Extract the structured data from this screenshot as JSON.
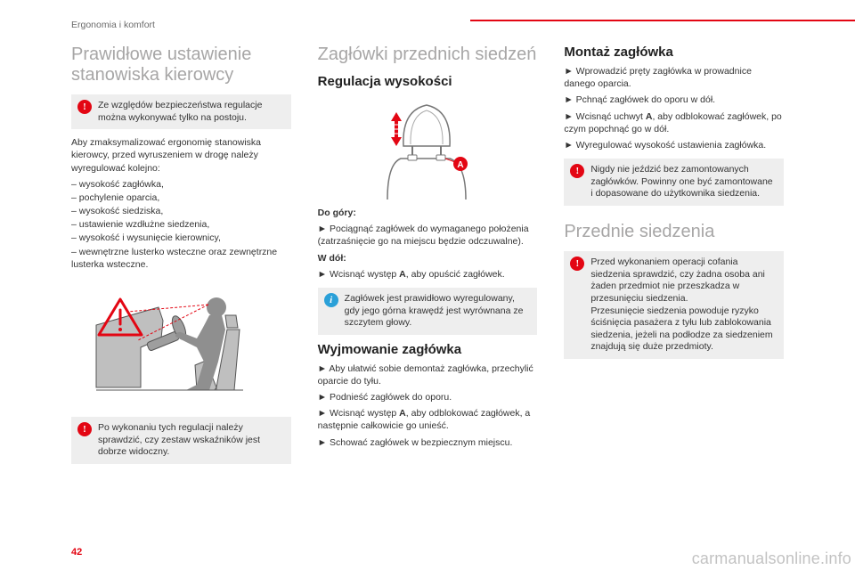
{
  "colors": {
    "accent": "#e30613",
    "heading_gray": "#a7a6a6",
    "text": "#333333",
    "callout_bg": "#eeeeee",
    "info_blue": "#2aa0d8",
    "figure_gray": "#bfbfbf",
    "figure_stroke": "#555555"
  },
  "breadcrumb": "Ergonomia i komfort",
  "page_number": "42",
  "watermark": "carmanualsonline.info",
  "col1": {
    "title": "Prawidłowe ustawienie stanowiska kierowcy",
    "warn1": "Ze względów bezpieczeństwa regulacje można wykonywać tylko na postoju.",
    "intro": "Aby zmaksymalizować ergonomię stanowiska kierowcy, przed wyruszeniem w drogę należy wyregulować kolejno:",
    "items": [
      "wysokość zagłówka,",
      "pochylenie oparcia,",
      "wysokość siedziska,",
      "ustawienie wzdłużne siedzenia,",
      "wysokość i wysunięcie kierownicy,",
      "wewnętrzne lusterko wsteczne oraz zewnętrzne lusterka wsteczne."
    ],
    "warn2": "Po wykonaniu tych regulacji należy sprawdzić, czy zestaw wskaźników jest dobrze widoczny."
  },
  "col2": {
    "title": "Zagłówki przednich siedzeń",
    "sub1": "Regulacja wysokości",
    "up_label": "Do góry:",
    "up_action": "Pociągnąć zagłówek do wymaganego położenia (zatrzaśnięcie go na miejscu będzie odczuwalne).",
    "down_label": "W dół:",
    "down_action_pre": "Wcisnąć występ ",
    "down_action_bold": "A",
    "down_action_post": ", aby opuścić zagłówek.",
    "info": "Zagłówek jest prawidłowo wyregulowany, gdy jego górna krawędź jest wyrównana ze szczytem głowy.",
    "sub2": "Wyjmowanie zagłówka",
    "remove": [
      "Aby ułatwić sobie demontaż zagłówka, przechylić oparcie do tyłu.",
      "Podnieść zagłówek do oporu.",
      "Wcisnąć występ <b>A</b>, aby odblokować zagłówek, a następnie całkowicie go unieść.",
      "Schować zagłówek w bezpiecznym miejscu."
    ]
  },
  "col3": {
    "sub1": "Montaż zagłówka",
    "install": [
      "Wprowadzić pręty zagłówka w prowadnice danego oparcia.",
      "Pchnąć zagłówek do oporu w dół.",
      "Wcisnąć uchwyt <b>A</b>, aby odblokować zagłówek, po czym popchnąć go w dół.",
      "Wyregulować wysokość ustawienia zagłówka."
    ],
    "warn1": "Nigdy nie jeździć bez zamontowanych zagłówków. Powinny one być zamontowane i dopasowane do użytkownika siedzenia.",
    "title2": "Przednie siedzenia",
    "warn2": "Przed wykonaniem operacji cofania siedzenia sprawdzić, czy żadna osoba ani żaden przedmiot nie przeszkadza w przesunięciu siedzenia.\nPrzesunięcie siedzenia powoduje ryzyko ściśnięcia pasażera z tyłu lub zablokowania siedzenia, jeżeli na podłodze za siedzeniem znajdują się duże przedmioty."
  }
}
